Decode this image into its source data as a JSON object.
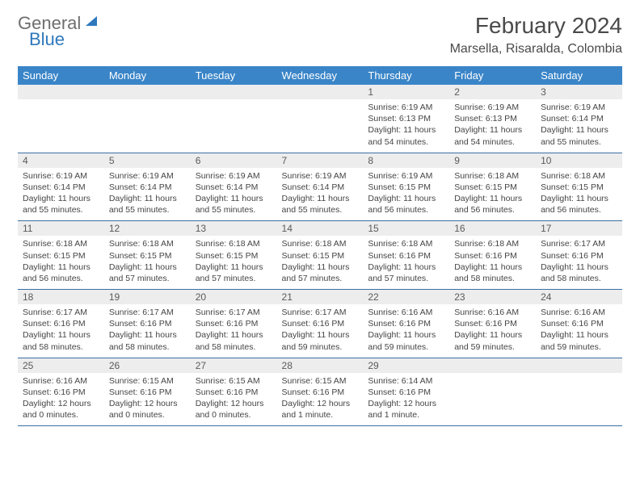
{
  "logo": {
    "part1": "General",
    "part2": "Blue"
  },
  "title": "February 2024",
  "location": "Marsella, Risaralda, Colombia",
  "colors": {
    "header_bg": "#3a85c8",
    "header_text": "#ffffff",
    "daynum_bg": "#ededed",
    "border": "#3a6fa3",
    "logo_gray": "#6e6e6e",
    "logo_blue": "#2f78bd"
  },
  "weekdays": [
    "Sunday",
    "Monday",
    "Tuesday",
    "Wednesday",
    "Thursday",
    "Friday",
    "Saturday"
  ],
  "weeks": [
    [
      null,
      null,
      null,
      null,
      {
        "n": "1",
        "sr": "6:19 AM",
        "ss": "6:13 PM",
        "dl": "11 hours and 54 minutes."
      },
      {
        "n": "2",
        "sr": "6:19 AM",
        "ss": "6:13 PM",
        "dl": "11 hours and 54 minutes."
      },
      {
        "n": "3",
        "sr": "6:19 AM",
        "ss": "6:14 PM",
        "dl": "11 hours and 55 minutes."
      }
    ],
    [
      {
        "n": "4",
        "sr": "6:19 AM",
        "ss": "6:14 PM",
        "dl": "11 hours and 55 minutes."
      },
      {
        "n": "5",
        "sr": "6:19 AM",
        "ss": "6:14 PM",
        "dl": "11 hours and 55 minutes."
      },
      {
        "n": "6",
        "sr": "6:19 AM",
        "ss": "6:14 PM",
        "dl": "11 hours and 55 minutes."
      },
      {
        "n": "7",
        "sr": "6:19 AM",
        "ss": "6:14 PM",
        "dl": "11 hours and 55 minutes."
      },
      {
        "n": "8",
        "sr": "6:19 AM",
        "ss": "6:15 PM",
        "dl": "11 hours and 56 minutes."
      },
      {
        "n": "9",
        "sr": "6:18 AM",
        "ss": "6:15 PM",
        "dl": "11 hours and 56 minutes."
      },
      {
        "n": "10",
        "sr": "6:18 AM",
        "ss": "6:15 PM",
        "dl": "11 hours and 56 minutes."
      }
    ],
    [
      {
        "n": "11",
        "sr": "6:18 AM",
        "ss": "6:15 PM",
        "dl": "11 hours and 56 minutes."
      },
      {
        "n": "12",
        "sr": "6:18 AM",
        "ss": "6:15 PM",
        "dl": "11 hours and 57 minutes."
      },
      {
        "n": "13",
        "sr": "6:18 AM",
        "ss": "6:15 PM",
        "dl": "11 hours and 57 minutes."
      },
      {
        "n": "14",
        "sr": "6:18 AM",
        "ss": "6:15 PM",
        "dl": "11 hours and 57 minutes."
      },
      {
        "n": "15",
        "sr": "6:18 AM",
        "ss": "6:16 PM",
        "dl": "11 hours and 57 minutes."
      },
      {
        "n": "16",
        "sr": "6:18 AM",
        "ss": "6:16 PM",
        "dl": "11 hours and 58 minutes."
      },
      {
        "n": "17",
        "sr": "6:17 AM",
        "ss": "6:16 PM",
        "dl": "11 hours and 58 minutes."
      }
    ],
    [
      {
        "n": "18",
        "sr": "6:17 AM",
        "ss": "6:16 PM",
        "dl": "11 hours and 58 minutes."
      },
      {
        "n": "19",
        "sr": "6:17 AM",
        "ss": "6:16 PM",
        "dl": "11 hours and 58 minutes."
      },
      {
        "n": "20",
        "sr": "6:17 AM",
        "ss": "6:16 PM",
        "dl": "11 hours and 58 minutes."
      },
      {
        "n": "21",
        "sr": "6:17 AM",
        "ss": "6:16 PM",
        "dl": "11 hours and 59 minutes."
      },
      {
        "n": "22",
        "sr": "6:16 AM",
        "ss": "6:16 PM",
        "dl": "11 hours and 59 minutes."
      },
      {
        "n": "23",
        "sr": "6:16 AM",
        "ss": "6:16 PM",
        "dl": "11 hours and 59 minutes."
      },
      {
        "n": "24",
        "sr": "6:16 AM",
        "ss": "6:16 PM",
        "dl": "11 hours and 59 minutes."
      }
    ],
    [
      {
        "n": "25",
        "sr": "6:16 AM",
        "ss": "6:16 PM",
        "dl": "12 hours and 0 minutes."
      },
      {
        "n": "26",
        "sr": "6:15 AM",
        "ss": "6:16 PM",
        "dl": "12 hours and 0 minutes."
      },
      {
        "n": "27",
        "sr": "6:15 AM",
        "ss": "6:16 PM",
        "dl": "12 hours and 0 minutes."
      },
      {
        "n": "28",
        "sr": "6:15 AM",
        "ss": "6:16 PM",
        "dl": "12 hours and 1 minute."
      },
      {
        "n": "29",
        "sr": "6:14 AM",
        "ss": "6:16 PM",
        "dl": "12 hours and 1 minute."
      },
      null,
      null
    ]
  ],
  "labels": {
    "sunrise": "Sunrise: ",
    "sunset": "Sunset: ",
    "daylight": "Daylight: "
  }
}
